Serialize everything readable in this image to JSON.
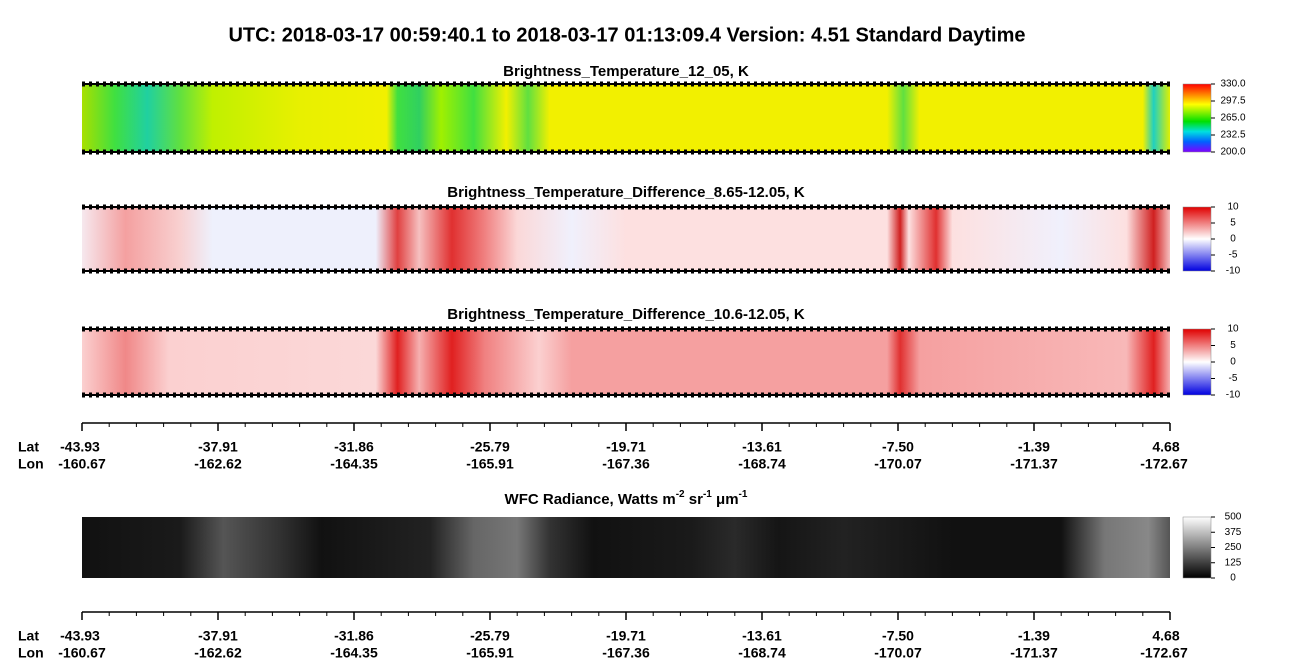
{
  "title": "UTC:  2018-03-17   00:59:40.1  to  2018-03-17   01:13:09.4    Version: 4.51  Standard Daytime",
  "panels": [
    {
      "title": [
        "Brightness_Temperature_12_05, K"
      ],
      "clim": [
        200,
        330
      ],
      "cticks": [
        {
          "value": 330,
          "label": "330.0"
        },
        {
          "value": 297.5,
          "label": "297.5"
        },
        {
          "value": 265,
          "label": "265.0"
        },
        {
          "value": 232.5,
          "label": "232.5"
        },
        {
          "value": 200,
          "label": "200.0"
        }
      ]
    },
    {
      "title": [
        "Brightness_Temperature_Difference_8.65-12.05, K"
      ],
      "clim": [
        -10,
        10
      ],
      "cticks": [
        10,
        5,
        0,
        -5,
        -10
      ]
    },
    {
      "title": [
        "Brightness_Temperature_Difference_10.6-12.05, K"
      ],
      "clim": [
        -10,
        10
      ],
      "cticks": [
        10,
        5,
        0,
        -5,
        -10
      ]
    },
    {
      "title": [
        "WFC Radiance, Watts m",
        "-2",
        " sr",
        "-1",
        " μm",
        "-1"
      ],
      "clim": [
        0,
        500
      ],
      "cticks": [
        500,
        375,
        250,
        125,
        0
      ]
    }
  ],
  "axis": {
    "lat_label": "Lat",
    "lon_label": "Lon",
    "lat": [
      "-43.93",
      "-37.91",
      "-31.86",
      "-25.79",
      "-19.71",
      "-13.61",
      "-7.50",
      "-1.39",
      "4.68"
    ],
    "lon": [
      "-160.67",
      "-162.62",
      "-164.35",
      "-165.91",
      "-167.36",
      "-168.74",
      "-170.07",
      "-171.37",
      "-172.67"
    ]
  }
}
